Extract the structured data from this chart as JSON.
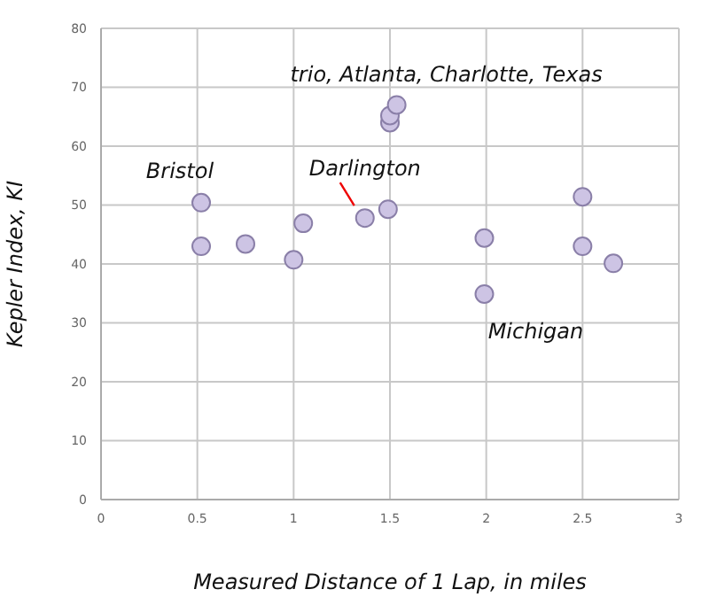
{
  "chart_data": {
    "type": "scatter",
    "xlabel": "Measured Distance of 1 Lap, in miles",
    "ylabel": "Kepler Index, KI",
    "x": [
      0.52,
      0.52,
      0.75,
      1.0,
      1.05,
      1.37,
      1.49,
      1.5,
      1.5,
      1.535,
      1.99,
      1.99,
      2.5,
      2.5,
      2.66
    ],
    "series": [
      {
        "color": "#cdc4e4",
        "values": [
          50.4,
          43.0,
          43.4,
          40.7,
          46.9,
          47.8,
          49.3,
          64,
          65.2,
          67,
          44.4,
          34.9,
          51.4,
          43.0,
          40.1
        ]
      }
    ],
    "xlim": [
      0,
      3
    ],
    "xticks": [
      0,
      0.5,
      1,
      1.5,
      2,
      2.5,
      3
    ],
    "ylim": [
      0,
      80
    ],
    "yticks": [
      0,
      10,
      20,
      30,
      40,
      50,
      60,
      70,
      80
    ],
    "grid": true,
    "marker": "circle",
    "legend": false,
    "annotations": [
      {
        "text": "Bristol",
        "x": 0.52,
        "y": 50.4
      },
      {
        "text": "Darlington",
        "x": 1.37,
        "y": 47.8
      },
      {
        "text": "trio, Atlanta, Charlotte, Texas",
        "x": 1.535,
        "y": 67
      },
      {
        "text": "Michigan",
        "x": 1.99,
        "y": 34.9
      }
    ]
  }
}
